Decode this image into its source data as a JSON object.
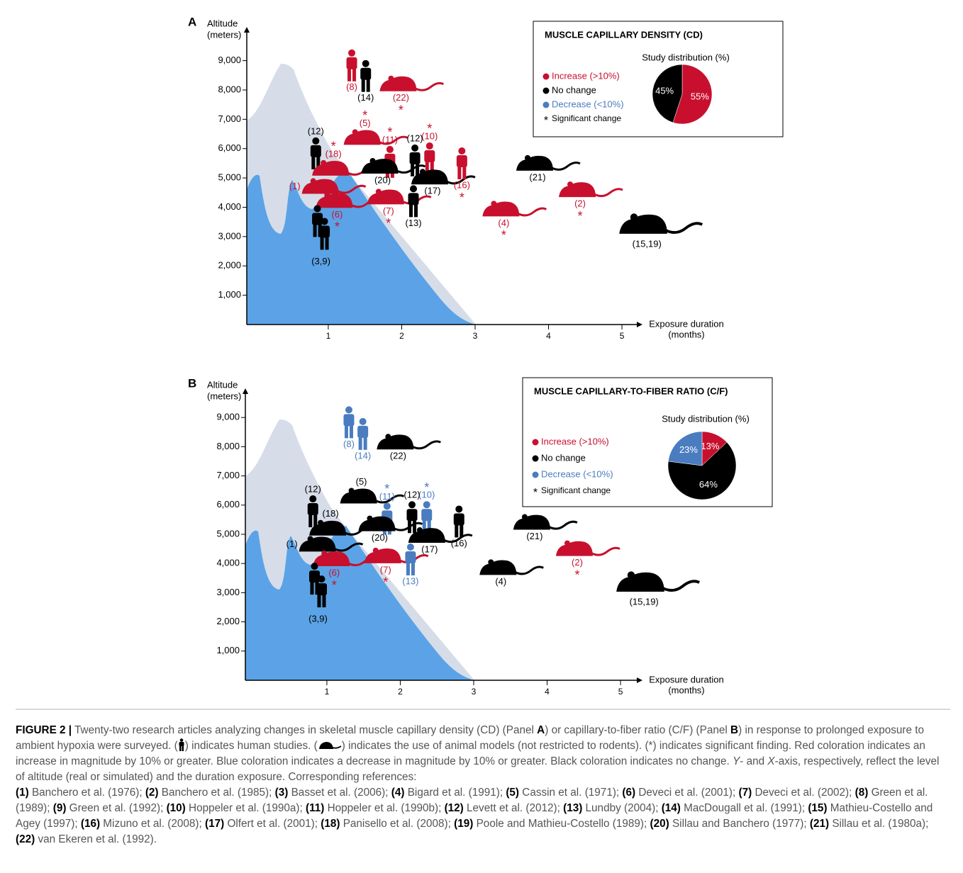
{
  "chart_data": [
    {
      "type": "study-map",
      "panel_label": "A",
      "y_label": [
        "Altitude",
        "(meters)"
      ],
      "x_label": [
        "Exposure duration",
        "(months)"
      ],
      "xlim": [
        -0.11,
        5.27
      ],
      "xticks": [
        1,
        2,
        3,
        4,
        5
      ],
      "ylim": [
        0,
        10150
      ],
      "yticks": [
        {
          "value": 1000,
          "label": "1,000"
        },
        {
          "value": 2000,
          "label": "2,000"
        },
        {
          "value": 3000,
          "label": "3,000"
        },
        {
          "value": 4000,
          "label": "4,000"
        },
        {
          "value": 5000,
          "label": "5,000"
        },
        {
          "value": 6000,
          "label": "6,000"
        },
        {
          "value": 7000,
          "label": "7,000"
        },
        {
          "value": 8000,
          "label": "8,000"
        },
        {
          "value": 9000,
          "label": "9,000"
        }
      ],
      "significance_marker": "*",
      "points": [
        {
          "x": 1.32,
          "y": 8850,
          "kind": "human",
          "color": "#c8102e",
          "label": "(8)",
          "significant": false
        },
        {
          "x": 1.51,
          "y": 8490,
          "kind": "human",
          "color": "#000000",
          "label": "(14)",
          "significant": false
        },
        {
          "x": 1.99,
          "y": 8200,
          "kind": "animal",
          "color": "#c8102e",
          "label": "(22)",
          "significant": true
        },
        {
          "x": 1.5,
          "y": 6370,
          "kind": "animal",
          "color": "#c8102e",
          "label": "(5)",
          "significant": true
        },
        {
          "x": 1.84,
          "y": 5560,
          "kind": "human",
          "color": "#c8102e",
          "label": "(11)",
          "significant": true
        },
        {
          "x": 2.38,
          "y": 5680,
          "kind": "human",
          "color": "#c8102e",
          "label": "(10)",
          "significant": true
        },
        {
          "x": 2.18,
          "y": 5610,
          "kind": "human",
          "color": "#000000",
          "label": "(12)",
          "significant": false
        },
        {
          "x": 0.83,
          "y": 5850,
          "kind": "human",
          "color": "#000000",
          "label": "(12)",
          "significant": false
        },
        {
          "x": 1.07,
          "y": 5320,
          "kind": "animal",
          "color": "#c8102e",
          "label": "(18)",
          "significant": true
        },
        {
          "x": 1.74,
          "y": 5390,
          "kind": "animal",
          "color": "#000000",
          "label": "(20)",
          "significant": false
        },
        {
          "x": 2.42,
          "y": 5020,
          "kind": "animal",
          "color": "#000000",
          "label": "(17)",
          "significant": false
        },
        {
          "x": 2.82,
          "y": 5510,
          "kind": "human",
          "color": "#c8102e",
          "label": "(16)",
          "significant": true
        },
        {
          "x": 3.85,
          "y": 5490,
          "kind": "animal",
          "color": "#000000",
          "label": "(21)",
          "significant": false
        },
        {
          "x": 0.93,
          "y": 4700,
          "kind": "animal",
          "color": "#c8102e",
          "label": "(1)",
          "significant": false
        },
        {
          "x": 1.12,
          "y": 4220,
          "kind": "animal",
          "color": "#c8102e",
          "label": "(6)",
          "significant": true
        },
        {
          "x": 1.82,
          "y": 4340,
          "kind": "animal",
          "color": "#c8102e",
          "label": "(7)",
          "significant": true
        },
        {
          "x": 2.16,
          "y": 4220,
          "kind": "human",
          "color": "#000000",
          "label": "(13)",
          "significant": false
        },
        {
          "x": 3.39,
          "y": 3930,
          "kind": "animal",
          "color": "#c8102e",
          "label": "(4)",
          "significant": true
        },
        {
          "x": 4.43,
          "y": 4590,
          "kind": "animal",
          "color": "#c8102e",
          "label": "(2)",
          "significant": true
        },
        {
          "x": 0.9,
          "y": 3300,
          "kind": "human-pair",
          "color": "#000000",
          "label": "(3,9)",
          "significant": false
        },
        {
          "x": 5.34,
          "y": 3410,
          "kind": "animal-large",
          "color": "#000000",
          "label": "(15,19)",
          "significant": false
        }
      ],
      "legend_title": "MUSCLE CAPILLARY DENSITY (CD)",
      "series": [
        {
          "name": "Increase (>10%)",
          "color": "#c8102e"
        },
        {
          "name": "No change",
          "color": "#000000"
        },
        {
          "name": "Decrease (<10%)",
          "color": "#4a7cc0"
        }
      ],
      "significance_label": "Significant change",
      "pie": {
        "type": "pie",
        "title": "Study distribution (%)",
        "values": [
          55,
          45
        ],
        "value_labels": [
          "55%",
          "45%"
        ],
        "colors": [
          "#c8102e",
          "#000000"
        ]
      }
    },
    {
      "type": "study-map",
      "panel_label": "B",
      "y_label": [
        "Altitude",
        "(meters)"
      ],
      "x_label": [
        "Exposure duration",
        "(months)"
      ],
      "xlim": [
        -0.11,
        5.27
      ],
      "xticks": [
        1,
        2,
        3,
        4,
        5
      ],
      "ylim": [
        0,
        10000
      ],
      "yticks": [
        {
          "value": 1000,
          "label": "1,000"
        },
        {
          "value": 2000,
          "label": "2,000"
        },
        {
          "value": 3000,
          "label": "3,000"
        },
        {
          "value": 4000,
          "label": "4,000"
        },
        {
          "value": 5000,
          "label": "5,000"
        },
        {
          "value": 6000,
          "label": "6,000"
        },
        {
          "value": 7000,
          "label": "7,000"
        },
        {
          "value": 8000,
          "label": "8,000"
        },
        {
          "value": 9000,
          "label": "9,000"
        }
      ],
      "significance_marker": "*",
      "points": [
        {
          "x": 1.3,
          "y": 8850,
          "kind": "human",
          "color": "#4a7cc0",
          "label": "(8)",
          "significant": false
        },
        {
          "x": 1.49,
          "y": 8450,
          "kind": "human",
          "color": "#4a7cc0",
          "label": "(14)",
          "significant": false
        },
        {
          "x": 1.97,
          "y": 8150,
          "kind": "animal",
          "color": "#000000",
          "label": "(22)",
          "significant": false
        },
        {
          "x": 1.47,
          "y": 6300,
          "kind": "animal",
          "color": "#000000",
          "label": "(5)",
          "significant": false
        },
        {
          "x": 1.82,
          "y": 5550,
          "kind": "human",
          "color": "#4a7cc0",
          "label": "(11)",
          "significant": true
        },
        {
          "x": 2.36,
          "y": 5600,
          "kind": "human",
          "color": "#4a7cc0",
          "label": "(10)",
          "significant": true
        },
        {
          "x": 2.16,
          "y": 5600,
          "kind": "human",
          "color": "#000000",
          "label": "(12)",
          "significant": false
        },
        {
          "x": 0.81,
          "y": 5800,
          "kind": "human",
          "color": "#000000",
          "label": "(12)",
          "significant": false
        },
        {
          "x": 1.05,
          "y": 5200,
          "kind": "animal",
          "color": "#000000",
          "label": "(18)",
          "significant": false
        },
        {
          "x": 1.72,
          "y": 5350,
          "kind": "animal",
          "color": "#000000",
          "label": "(20)",
          "significant": false
        },
        {
          "x": 2.4,
          "y": 4950,
          "kind": "animal",
          "color": "#000000",
          "label": "(17)",
          "significant": false
        },
        {
          "x": 2.8,
          "y": 5450,
          "kind": "human",
          "color": "#000000",
          "label": "(16)",
          "significant": false
        },
        {
          "x": 3.83,
          "y": 5400,
          "kind": "animal",
          "color": "#000000",
          "label": "(21)",
          "significant": false
        },
        {
          "x": 0.91,
          "y": 4650,
          "kind": "animal",
          "color": "#000000",
          "label": "(1)",
          "significant": false
        },
        {
          "x": 1.1,
          "y": 4150,
          "kind": "animal",
          "color": "#c8102e",
          "label": "(6)",
          "significant": true
        },
        {
          "x": 1.8,
          "y": 4250,
          "kind": "animal",
          "color": "#c8102e",
          "label": "(7)",
          "significant": true
        },
        {
          "x": 2.14,
          "y": 4150,
          "kind": "human",
          "color": "#4a7cc0",
          "label": "(13)",
          "significant": false
        },
        {
          "x": 3.37,
          "y": 3850,
          "kind": "animal",
          "color": "#000000",
          "label": "(4)",
          "significant": false
        },
        {
          "x": 4.41,
          "y": 4500,
          "kind": "animal",
          "color": "#c8102e",
          "label": "(2)",
          "significant": true
        },
        {
          "x": 0.88,
          "y": 3250,
          "kind": "human-pair",
          "color": "#000000",
          "label": "(3,9)",
          "significant": false
        },
        {
          "x": 5.32,
          "y": 3350,
          "kind": "animal-large",
          "color": "#000000",
          "label": "(15,19)",
          "significant": false
        }
      ],
      "legend_title": "MUSCLE CAPILLARY-TO-FIBER RATIO (C/F)",
      "series": [
        {
          "name": "Increase (>10%)",
          "color": "#c8102e"
        },
        {
          "name": "No change",
          "color": "#000000"
        },
        {
          "name": "Decrease (<10%)",
          "color": "#4a7cc0"
        }
      ],
      "significance_label": "Significant change",
      "pie": {
        "type": "pie",
        "title": "Study distribution (%)",
        "values": [
          13,
          64,
          23
        ],
        "value_labels": [
          "13%",
          "64%",
          "23%"
        ],
        "colors": [
          "#c8102e",
          "#000000",
          "#4a7cc0"
        ]
      }
    }
  ],
  "caption": {
    "label": "FIGURE 2 |",
    "t1": " Twenty-two research articles analyzing changes in skeletal muscle capillary density (CD) (Panel ",
    "b1": "A",
    "t2": ") or capillary-to-fiber ratio (C/F) (Panel ",
    "b2": "B",
    "t3": ") in response to prolonged exposure to ambient hypoxia were surveyed. (",
    "t4": ") indicates human studies. (",
    "t5": ") indicates the use of animal models (not restricted to rodents). (*) indicates significant finding. Red coloration indicates an increase in magnitude by 10% or greater. Blue coloration indicates a decrease in magnitude by 10% or greater. Black coloration indicates no change. ",
    "i1": "Y",
    "t6": "- and ",
    "i2": "X",
    "t7": "-axis, respectively, reflect the level of altitude (real or simulated) and the duration exposure. Corresponding references:",
    "references": [
      {
        "num": "(1)",
        "text": "Banchero et al. (1976);"
      },
      {
        "num": "(2)",
        "text": "Banchero et al. (1985);"
      },
      {
        "num": "(3)",
        "text": "Basset et al. (2006);"
      },
      {
        "num": "(4)",
        "text": "Bigard et al. (1991);"
      },
      {
        "num": "(5)",
        "text": "Cassin et al. (1971);"
      },
      {
        "num": "(6)",
        "text": "Deveci et al. (2001);"
      },
      {
        "num": "(7)",
        "text": "Deveci et al. (2002);"
      },
      {
        "num": "(8)",
        "text": "Green et al. (1989);"
      },
      {
        "num": "(9)",
        "text": "Green et al. (1992);"
      },
      {
        "num": "(10)",
        "text": "Hoppeler et al. (1990a);"
      },
      {
        "num": "(11)",
        "text": "Hoppeler et al. (1990b);"
      },
      {
        "num": "(12)",
        "text": "Levett et al. (2012);"
      },
      {
        "num": "(13)",
        "text": "Lundby (2004);"
      },
      {
        "num": "(14)",
        "text": "MacDougall et al. (1991);"
      },
      {
        "num": "(15)",
        "text": "Mathieu-Costello and Agey (1997);"
      },
      {
        "num": "(16)",
        "text": "Mizuno et al. (2008);"
      },
      {
        "num": "(17)",
        "text": "Olfert et al. (2001);"
      },
      {
        "num": "(18)",
        "text": "Panisello et al. (2008);"
      },
      {
        "num": "(19)",
        "text": "Poole and Mathieu-Costello (1989);"
      },
      {
        "num": "(20)",
        "text": "Sillau and Banchero (1977);"
      },
      {
        "num": "(21)",
        "text": "Sillau et al. (1980a);"
      },
      {
        "num": "(22)",
        "text": "van Ekeren et al. (1992)."
      }
    ]
  }
}
